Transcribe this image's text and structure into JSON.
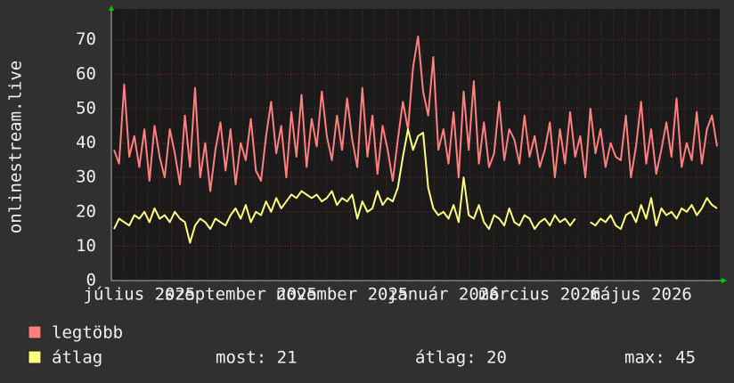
{
  "chart_data": {
    "type": "line",
    "y_label": "onlinestream.live",
    "categories": [
      null,
      null,
      null,
      null,
      null,
      "július 2025",
      null,
      null,
      null,
      null,
      null,
      null,
      null,
      null,
      null,
      null,
      null,
      null,
      null,
      null,
      null,
      null,
      null,
      null,
      null,
      "szeptember 2025",
      null,
      null,
      null,
      null,
      null,
      null,
      null,
      null,
      null,
      null,
      null,
      null,
      null,
      null,
      null,
      null,
      null,
      null,
      null,
      "november 2025",
      null,
      null,
      null,
      null,
      null,
      null,
      null,
      null,
      null,
      null,
      null,
      null,
      null,
      null,
      null,
      null,
      null,
      null,
      null,
      "január 2026",
      null,
      null,
      null,
      null,
      null,
      null,
      null,
      null,
      null,
      null,
      null,
      null,
      null,
      null,
      null,
      null,
      null,
      null,
      "március 2026",
      null,
      null,
      null,
      null,
      null,
      null,
      null,
      null,
      null,
      null,
      null,
      null,
      null,
      null,
      null,
      null,
      null,
      null,
      null,
      "május 2026",
      null,
      null,
      null,
      null,
      null,
      null,
      null,
      null,
      null,
      null,
      null,
      null,
      null,
      null,
      null
    ],
    "series": [
      {
        "name": "legtöbb",
        "color": "#ff7f7f",
        "values": [
          38,
          34,
          57,
          36,
          42,
          33,
          44,
          29,
          45,
          36,
          30,
          44,
          37,
          28,
          48,
          33,
          56,
          30,
          40,
          26,
          38,
          46,
          32,
          44,
          28,
          40,
          35,
          47,
          32,
          29,
          42,
          52,
          37,
          45,
          30,
          49,
          36,
          54,
          33,
          47,
          39,
          55,
          42,
          35,
          48,
          38,
          53,
          41,
          33,
          56,
          36,
          48,
          31,
          45,
          38,
          29,
          41,
          52,
          44,
          62,
          71,
          55,
          48,
          65,
          38,
          44,
          34,
          49,
          30,
          55,
          38,
          58,
          34,
          46,
          33,
          37,
          52,
          35,
          44,
          41,
          34,
          48,
          36,
          42,
          33,
          38,
          46,
          30,
          44,
          34,
          49,
          36,
          42,
          30,
          50,
          37,
          44,
          33,
          40,
          36,
          35,
          48,
          30,
          39,
          52,
          34,
          44,
          31,
          38,
          46,
          36,
          53,
          33,
          40,
          35,
          49,
          34,
          44,
          48,
          39
        ]
      },
      {
        "name": "átlag",
        "color": "#ffff80",
        "values": [
          15,
          18,
          17,
          16,
          19,
          18,
          20,
          17,
          21,
          18,
          19,
          17,
          20,
          18,
          17,
          11,
          16,
          18,
          17,
          15,
          18,
          17,
          16,
          19,
          21,
          18,
          22,
          17,
          20,
          19,
          23,
          20,
          24,
          21,
          23,
          25,
          24,
          26,
          25,
          24,
          25,
          23,
          24,
          26,
          22,
          24,
          23,
          25,
          18,
          23,
          20,
          21,
          26,
          22,
          24,
          23,
          27,
          36,
          44,
          38,
          42,
          43,
          27,
          21,
          19,
          20,
          18,
          22,
          17,
          30,
          19,
          18,
          22,
          17,
          15,
          19,
          18,
          16,
          21,
          17,
          16,
          19,
          18,
          15,
          17,
          18,
          16,
          19,
          17,
          18,
          16,
          18,
          null,
          null,
          17,
          16,
          18,
          17,
          19,
          16,
          15,
          19,
          20,
          17,
          22,
          18,
          24,
          16,
          21,
          19,
          20,
          18,
          21,
          20,
          22,
          19,
          21,
          24,
          22,
          21
        ]
      }
    ],
    "ylim": [
      0,
      79
    ],
    "yticks": [
      0,
      10,
      20,
      30,
      40,
      50,
      60,
      70
    ],
    "grid": true,
    "stats": [
      "most: 21",
      "átlag: 20",
      "max: 45"
    ]
  }
}
